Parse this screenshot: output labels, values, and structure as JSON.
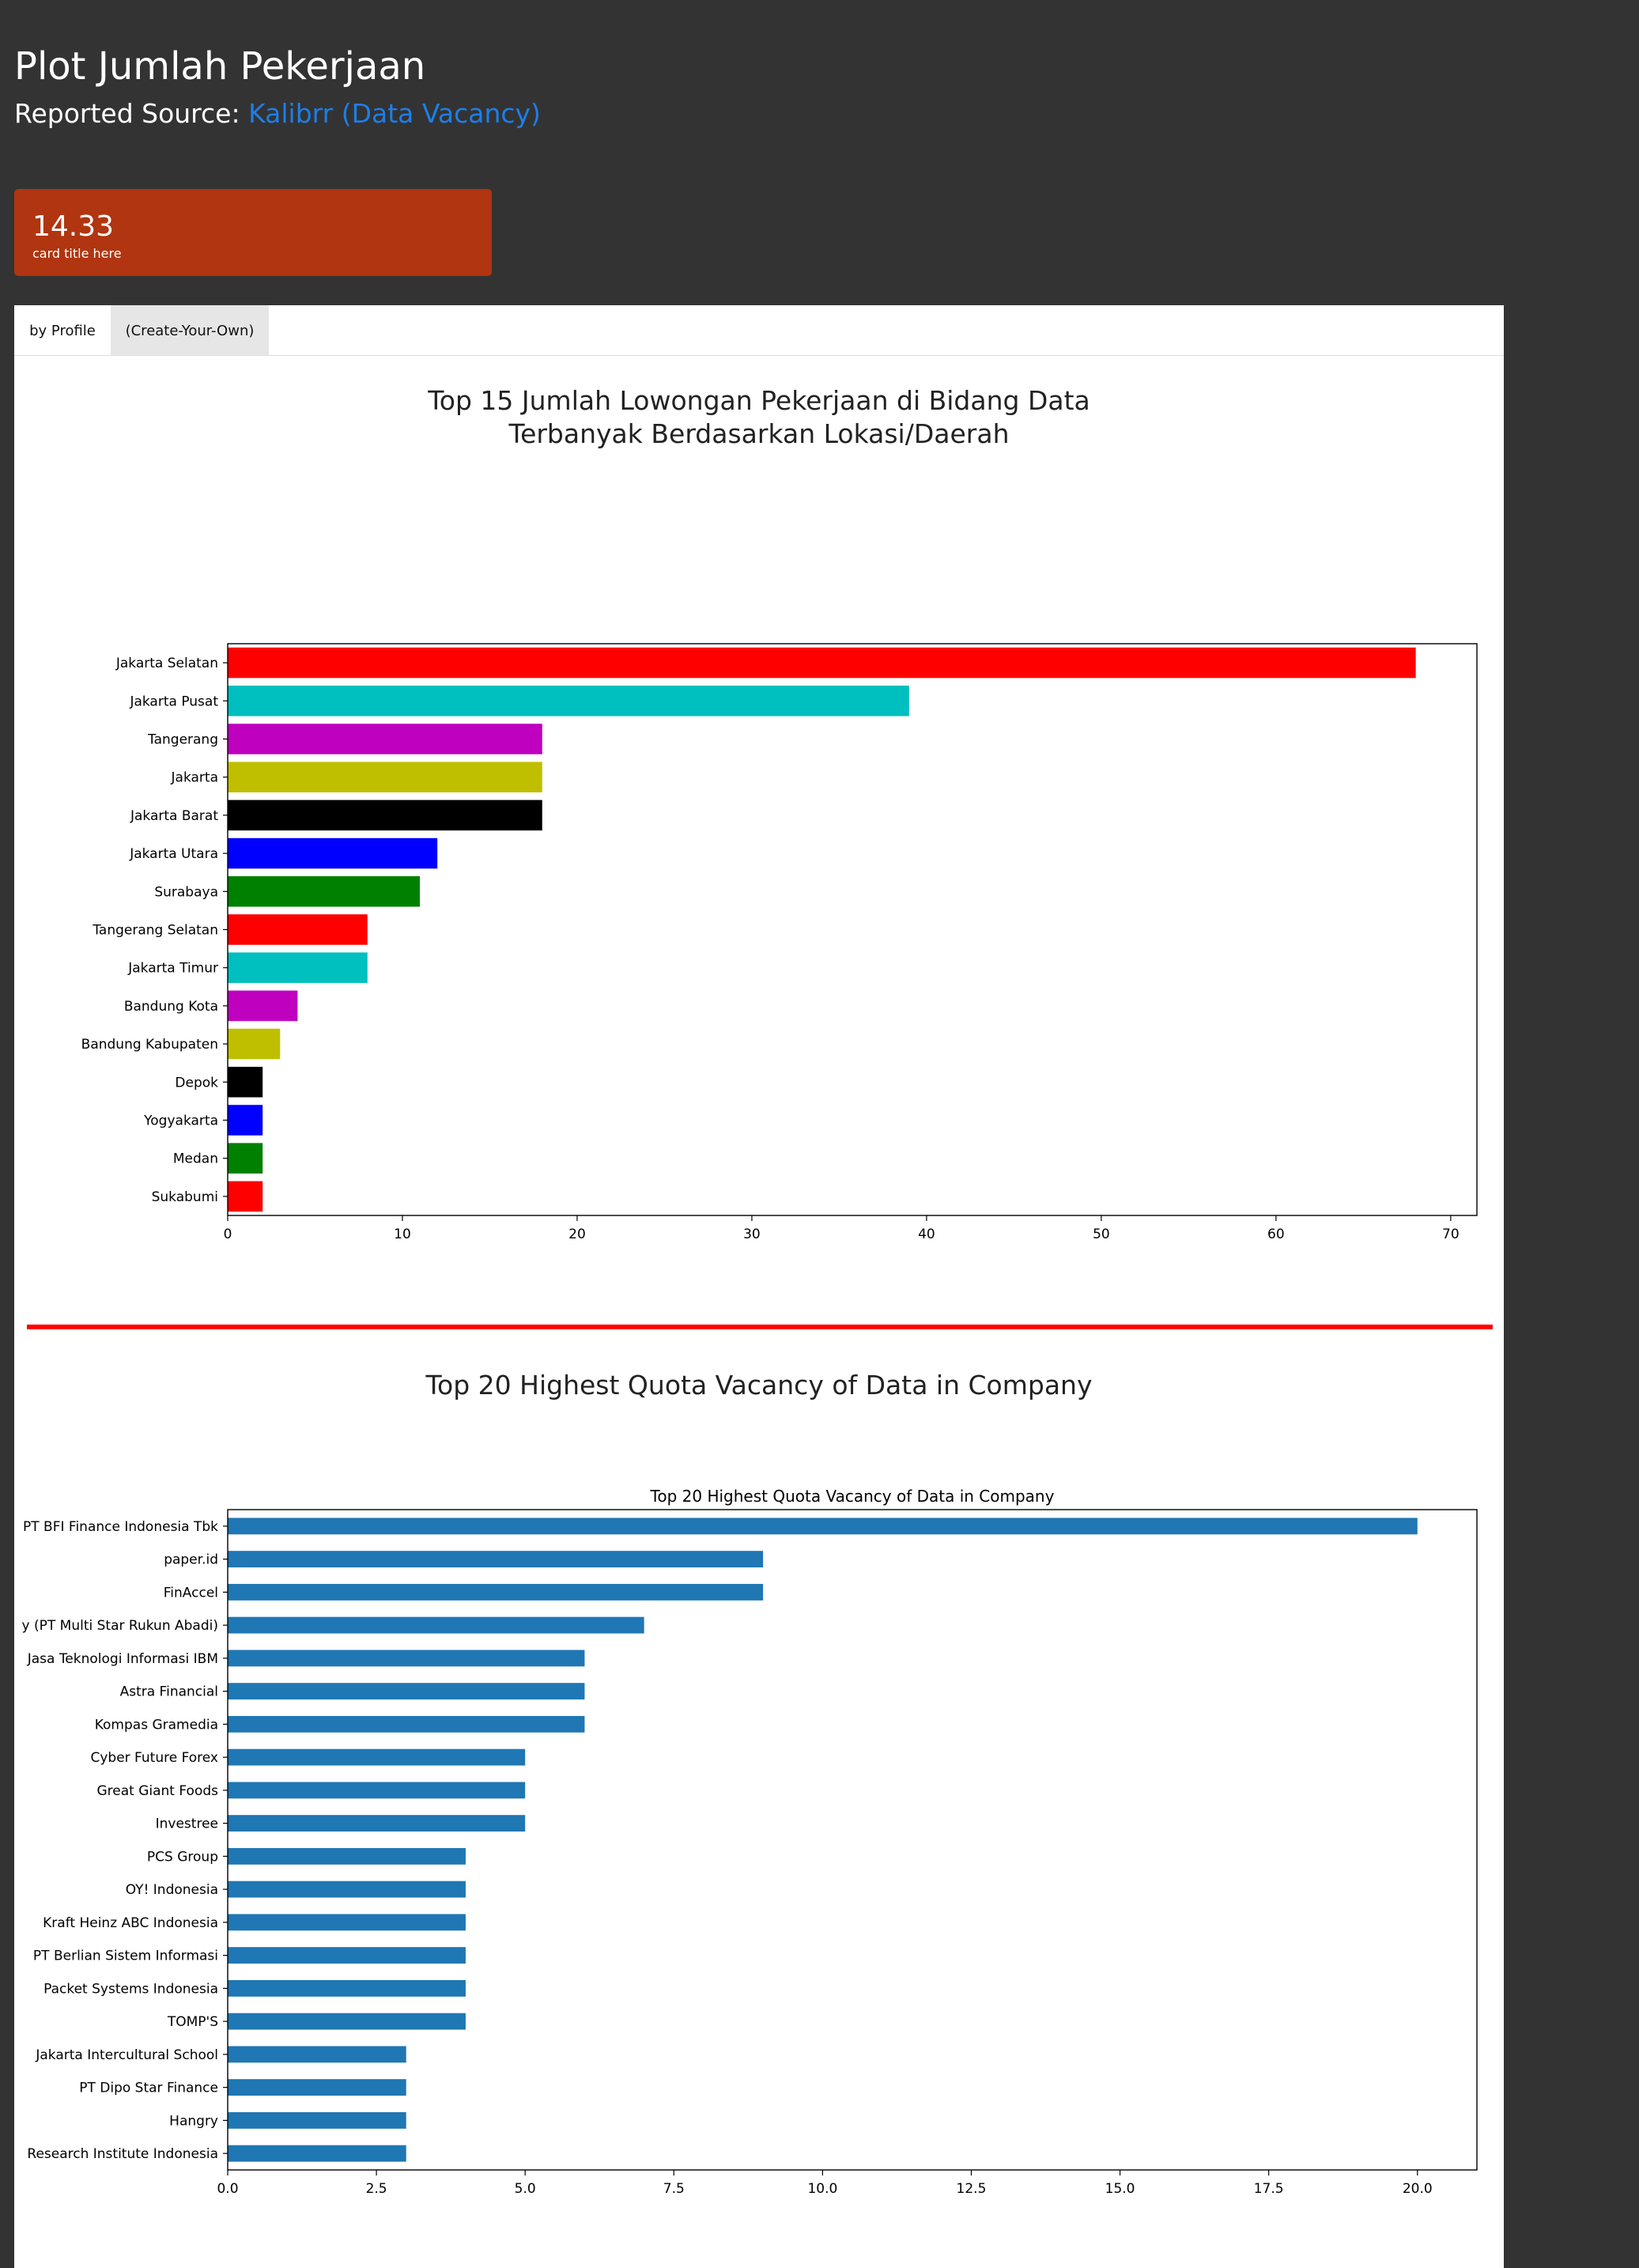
{
  "header": {
    "title": "Plot Jumlah Pekerjaan",
    "source_label": "Reported Source: ",
    "source_link": "Kalibrr (Data Vacancy)"
  },
  "card": {
    "value": "14.33",
    "title": "card title here"
  },
  "tabs": [
    {
      "label": "by Profile",
      "active": true
    },
    {
      "label": "(Create-Your-Own)",
      "active": false
    }
  ],
  "divider_color": "#ff0000",
  "chart1": {
    "heading": "Top 15 Jumlah Lowongan Pekerjaan di Bidang Data\nTerbanyak Berdasarkan Lokasi/Daerah"
  },
  "chart2": {
    "heading": "Top 20 Highest Quota Vacancy of Data in Company"
  },
  "chart_data": [
    {
      "type": "bar",
      "orientation": "horizontal",
      "title": "",
      "xlabel": "",
      "ylabel": "",
      "xlim": [
        0,
        71.5
      ],
      "xticks": [
        0,
        10,
        20,
        30,
        40,
        50,
        60,
        70
      ],
      "grid": false,
      "categories": [
        "Jakarta Selatan",
        "Jakarta Pusat",
        "Tangerang",
        "Jakarta",
        "Jakarta Barat",
        "Jakarta Utara",
        "Surabaya",
        "Tangerang Selatan",
        "Jakarta Timur",
        "Bandung Kota",
        "Bandung Kabupaten",
        "Depok",
        "Yogyakarta",
        "Medan",
        "Sukabumi"
      ],
      "values": [
        68,
        39,
        18,
        18,
        18,
        12,
        11,
        8,
        8,
        4,
        3,
        2,
        2,
        2,
        2
      ],
      "colors": [
        "#ff0000",
        "#00bfbf",
        "#bf00bf",
        "#bfbf00",
        "#000000",
        "#0000ff",
        "#008000",
        "#ff0000",
        "#00bfbf",
        "#bf00bf",
        "#bfbf00",
        "#000000",
        "#0000ff",
        "#008000",
        "#ff0000"
      ]
    },
    {
      "type": "bar",
      "orientation": "horizontal",
      "title": "Top 20 Highest Quota Vacancy of Data in Company",
      "xlabel": "",
      "ylabel": "",
      "xlim": [
        0,
        21
      ],
      "xticks": [
        "0.0",
        "2.5",
        "5.0",
        "7.5",
        "10.0",
        "12.5",
        "15.0",
        "17.5",
        "20.0"
      ],
      "grid": false,
      "categories": [
        "PT BFI Finance Indonesia Tbk",
        "paper.id",
        "FinAccel",
        "y (PT Multi Star Rukun Abadi)",
        "Jasa Teknologi Informasi IBM",
        "Astra Financial",
        "Kompas Gramedia",
        "Cyber Future Forex",
        "Great Giant Foods",
        "Investree",
        "PCS Group",
        "OY! Indonesia",
        "Kraft Heinz ABC Indonesia",
        "PT Berlian Sistem Informasi",
        "Packet Systems Indonesia",
        "TOMP'S",
        "Jakarta Intercultural School",
        "PT Dipo Star Finance",
        "Hangry",
        "Research Institute Indonesia"
      ],
      "values": [
        20,
        9,
        9,
        7,
        6,
        6,
        6,
        5,
        5,
        5,
        4,
        4,
        4,
        4,
        4,
        4,
        3,
        3,
        3,
        3
      ],
      "color": "#1f77b4"
    }
  ]
}
